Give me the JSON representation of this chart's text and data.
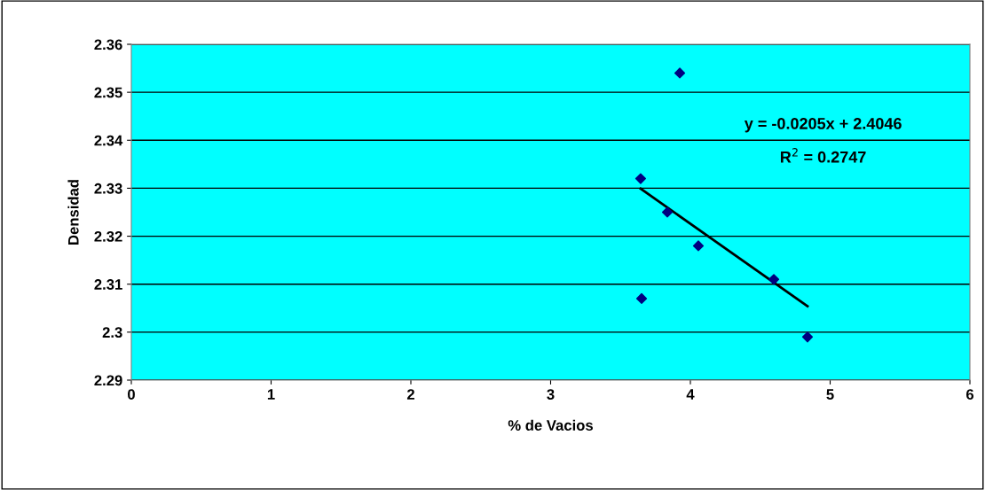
{
  "chart_data": {
    "type": "scatter",
    "xlabel": "% de Vacios",
    "ylabel": "Densidad",
    "series": [
      {
        "color": "#000080",
        "marker": "diamond",
        "x": [
          3.644,
          3.924,
          3.835,
          4.057,
          4.597,
          3.651,
          4.838
        ],
        "values": [
          2.332,
          2.354,
          2.325,
          2.318,
          2.311,
          2.307,
          2.299
        ]
      },
      {
        "type": "line",
        "color": "#000000",
        "marker": "none",
        "line_style": "solid",
        "x": [
          3.644,
          4.838
        ],
        "values": [
          2.3299,
          2.3054
        ]
      }
    ],
    "annotations": [
      "y = -0.0205x + 2.4046",
      "R$^{2}$ = 0.2747"
    ],
    "xlim": [
      0,
      6
    ],
    "xticks": [
      0,
      1,
      2,
      3,
      4,
      5,
      6
    ],
    "ylim": [
      2.29,
      2.36
    ],
    "yticks": [
      2.29,
      2.3,
      2.31,
      2.32,
      2.33,
      2.34,
      2.35,
      2.36
    ],
    "grid": "y",
    "legend": false
  }
}
